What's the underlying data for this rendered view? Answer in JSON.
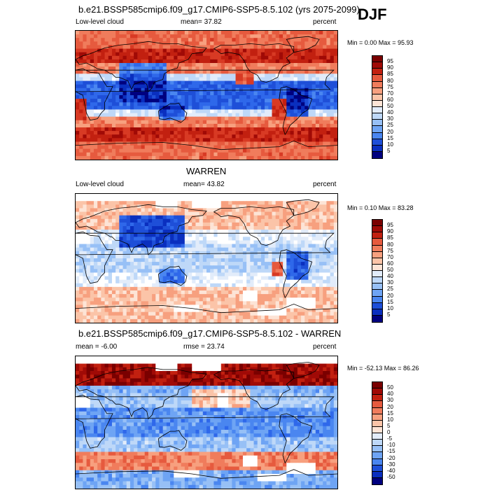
{
  "season": "DJF",
  "palette_main": [
    "#00007f",
    "#0a2fbf",
    "#1e4fd8",
    "#2f68ea",
    "#4a86f0",
    "#6ea4f4",
    "#97c0f6",
    "#bed8f8",
    "#e2ecfa",
    "#ffffff",
    "#fde4d6",
    "#fbc4a8",
    "#f7a07f",
    "#f07c5c",
    "#e65a3e",
    "#d83a24",
    "#c22010",
    "#a00a06",
    "#7a0000"
  ],
  "palette_diff": [
    "#00007f",
    "#0a2fbf",
    "#1e4fd8",
    "#2f68ea",
    "#4a86f0",
    "#6ea4f4",
    "#97c0f6",
    "#bed8f8",
    "#e2ecfa",
    "#ffffff",
    "#fde4d6",
    "#fbc4a8",
    "#f7a07f",
    "#f07c5c",
    "#e65a3e",
    "#d83a24",
    "#c22010",
    "#a00a06",
    "#7a0000"
  ],
  "panels": [
    {
      "title": "b.e21.BSSP585cmip6.f09_g17.CMIP6-SSP5-8.5.102 (yrs 2075-2099)",
      "left_label": "Low-level cloud",
      "center_label": "mean=  37.82",
      "right_label": "percent",
      "minmax": "Min =   0.00 Max =  95.93",
      "colorbar_labels": [
        "95",
        "90",
        "85",
        "80",
        "75",
        "70",
        "60",
        "50",
        "40",
        "30",
        "25",
        "20",
        "15",
        "10",
        "5"
      ]
    },
    {
      "title": "WARREN",
      "left_label": "Low-level cloud",
      "center_label": "mean=  43.82",
      "right_label": "percent",
      "minmax": "Min =   0.10 Max =  83.28",
      "colorbar_labels": [
        "95",
        "90",
        "85",
        "80",
        "75",
        "70",
        "60",
        "50",
        "40",
        "30",
        "25",
        "20",
        "15",
        "10",
        "5"
      ]
    },
    {
      "title": "b.e21.BSSP585cmip6.f09_g17.CMIP6-SSP5-8.5.102 - WARREN",
      "left_label": "mean =  -6.00",
      "center_label": "rmse =  23.74",
      "right_label": "percent",
      "minmax": "Min = -52.13 Max =  86.26",
      "colorbar_labels": [
        "50",
        "40",
        "30",
        "20",
        "15",
        "10",
        "5",
        "0",
        "-5",
        "-10",
        "-15",
        "-20",
        "-30",
        "-40",
        "-50"
      ]
    }
  ]
}
